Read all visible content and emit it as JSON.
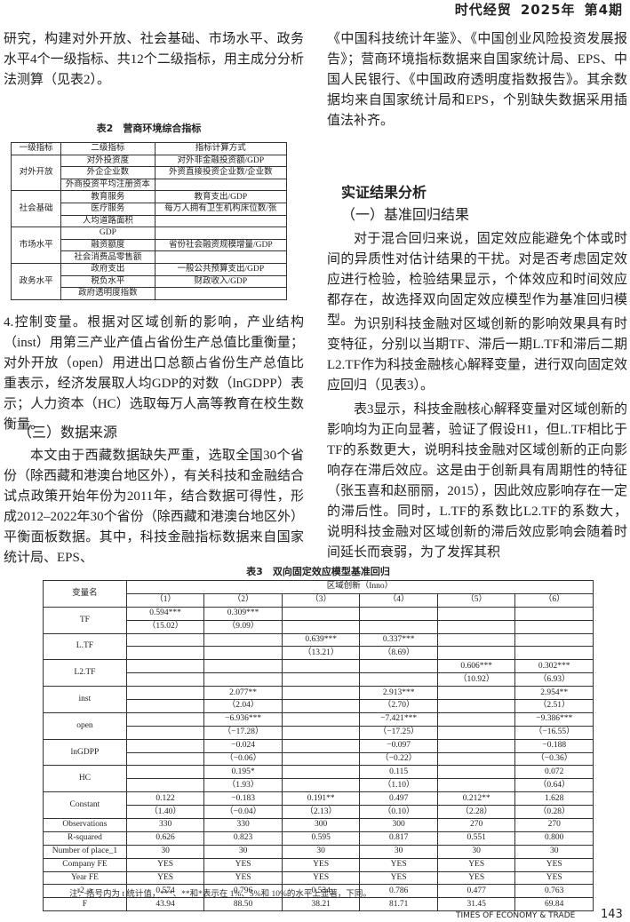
{
  "header": {
    "journal": "时代经贸",
    "year": "2025年",
    "issue": "第4期"
  },
  "left": {
    "p1": "研究，构建对外开放、社会基础、市场水平、政务水平4个一级指标、共12个二级指标，用主成分分析法测算（见表2）。",
    "table2": {
      "title": "表2　营商环境综合指标",
      "headers": [
        "一级指标",
        "二级指标",
        "指标计算方式"
      ],
      "groups": [
        {
          "name": "对外开放",
          "rows": [
            [
              "对外投资度",
              "对外非金融投资额/GDP"
            ],
            [
              "外企企业数",
              "外资直接投资企业数/企业数"
            ],
            [
              "外商投资平均注册资本",
              ""
            ]
          ]
        },
        {
          "name": "社会基础",
          "rows": [
            [
              "教育服务",
              "教育支出/GDP"
            ],
            [
              "医疗服务",
              "每万人拥有卫生机构床位数/张"
            ],
            [
              "人均道路面积",
              ""
            ]
          ]
        },
        {
          "name": "市场水平",
          "rows": [
            [
              "GDP",
              ""
            ],
            [
              "融资额度",
              "省份社会融资规模增量/GDP"
            ],
            [
              "社会消费品零售额",
              ""
            ]
          ]
        },
        {
          "name": "政务水平",
          "rows": [
            [
              "政府支出",
              "一般公共预算支出/GDP"
            ],
            [
              "税负水平",
              "财政收入/GDP"
            ],
            [
              "政府透明度指数",
              ""
            ]
          ]
        }
      ]
    },
    "p2": "4.控制变量。根据对区域创新的影响，产业结构（inst）用第三产业产值占省份生产总值比重衡量；对外开放（open）用进出口总额占省份生产总值比重表示，经济发展取人均GDP的对数（lnGDPP）表示；人力资本（HC）选取每万人高等教育在校生数衡量。",
    "h_data": "（三）数据来源",
    "p3": "本文由于西藏数据缺失严重，选取全国30个省份（除西藏和港澳台地区外），有关科技和金融结合试点政策开始年份为2011年，结合数据可得性，形成2012–2022年30个省份（除西藏和港澳台地区外）平衡面板数据。其中，科技金融指标数据来自国家统计局、EPS、"
  },
  "right": {
    "p1": "《中国科技统计年鉴》、《中国创业风险投资发展报告》；营商环境指标数据来自国家统计局、EPS、中国人民银行、《中国政府透明度指数报告》。其余数据均来自国家统计局和EPS，个别缺失数据采用插值法补齐。",
    "h_section": "实证结果分析",
    "h_sub": "（一）基准回归结果",
    "p2": "对于混合回归来说，固定效应能避免个体或时间的异质性对估计结果的干扰。对是否考虑固定效应进行检验，检验结果显示，个体效应和时间效应都存在，故选择双向固定效应模型作为基准回归模型。",
    "p3": "为识别科技金融对区域创新的影响效果具有时变特征，分别以当期TF、滞后一期L.TF和滞后二期L2.TF作为科技金融核心解释变量，进行双向固定效应回归（见表3）。",
    "p4": "表3显示，科技金融核心解释变量对区域创新的影响均为正向显著，验证了假设H1，但L.TF相比于TF的系数更大，说明科技金融对区域创新的正向影响存在滞后效应。这是由于创新具有周期性的特征（张玉喜和赵丽丽，2015），因此效应影响存在一定的滞后性。同时，L.TF的系数比L2.TF的系数大，说明科技金融对区域创新的滞后效应影响会随着时间延长而衰弱，为了发挥其积"
  },
  "table3": {
    "title": "表3　双向固定效应模型基准回归",
    "var_header": "变量名",
    "dep_header": "区域创新（Inno）",
    "cols": [
      "（1）",
      "（2）",
      "（3）",
      "（4）",
      "（5）",
      "（6）"
    ],
    "paired": [
      {
        "name": "TF",
        "coef": [
          "0.594***",
          "0.309***",
          "",
          "",
          "",
          ""
        ],
        "t": [
          "（15.02）",
          "（9.09）",
          "",
          "",
          "",
          ""
        ]
      },
      {
        "name": "L.TF",
        "coef": [
          "",
          "",
          "0.639***",
          "0.337***",
          "",
          ""
        ],
        "t": [
          "",
          "",
          "（13.21）",
          "（8.69）",
          "",
          ""
        ]
      },
      {
        "name": "L2.TF",
        "coef": [
          "",
          "",
          "",
          "",
          "0.606***",
          "0.302***"
        ],
        "t": [
          "",
          "",
          "",
          "",
          "（10.92）",
          "（6.93）"
        ]
      },
      {
        "name": "inst",
        "coef": [
          "",
          "2.077**",
          "",
          "2.913***",
          "",
          "2.954**"
        ],
        "t": [
          "",
          "（2.04）",
          "",
          "（2.70）",
          "",
          "（2.51）"
        ]
      },
      {
        "name": "open",
        "coef": [
          "",
          "−6.936***",
          "",
          "−7.421***",
          "",
          "−9.386***"
        ],
        "t": [
          "",
          "（−17.28）",
          "",
          "（−17.25）",
          "",
          "（−16.55）"
        ]
      },
      {
        "name": "lnGDPP",
        "coef": [
          "",
          "−0.024",
          "",
          "−0.097",
          "",
          "−0.188"
        ],
        "t": [
          "",
          "（−0.06）",
          "",
          "（−0.22）",
          "",
          "（−0.36）"
        ]
      },
      {
        "name": "HC",
        "coef": [
          "",
          "0.195*",
          "",
          "0.115",
          "",
          "0.072"
        ],
        "t": [
          "",
          "（1.93）",
          "",
          "（1.10）",
          "",
          "（0.64）"
        ]
      },
      {
        "name": "Constant",
        "coef": [
          "0.122",
          "−0.183",
          "0.191**",
          "0.497",
          "0.212**",
          "1.628"
        ],
        "t": [
          "（1.40）",
          "（−0.04）",
          "（2.13）",
          "（0.10）",
          "（2.28）",
          "（0.28）"
        ]
      }
    ],
    "single": [
      {
        "name": "Observations",
        "vals": [
          "330",
          "330",
          "300",
          "300",
          "270",
          "270"
        ]
      },
      {
        "name": "R-squared",
        "vals": [
          "0.626",
          "0.823",
          "0.595",
          "0.817",
          "0.551",
          "0.800"
        ]
      },
      {
        "name": "Number of place_1",
        "vals": [
          "30",
          "30",
          "30",
          "30",
          "30",
          "30"
        ]
      },
      {
        "name": "Company FE",
        "vals": [
          "YES",
          "YES",
          "YES",
          "YES",
          "YES",
          "YES"
        ]
      },
      {
        "name": "Year FE",
        "vals": [
          "YES",
          "YES",
          "YES",
          "YES",
          "YES",
          "YES"
        ]
      },
      {
        "name": "r2_a",
        "vals": [
          "0.574",
          "0.796",
          "0.534",
          "0.786",
          "0.477",
          "0.763"
        ]
      },
      {
        "name": "F",
        "vals": [
          "43.94",
          "88.50",
          "38.21",
          "81.71",
          "31.45",
          "69.84"
        ]
      }
    ],
    "note": "注：括号内为 t 统计值，***、**和*表示在 1%、5%和 10%的水平上显著，下同。"
  },
  "footer": {
    "journal_en": "TIMES OF ECONOMY & TRADE",
    "page": "143"
  }
}
